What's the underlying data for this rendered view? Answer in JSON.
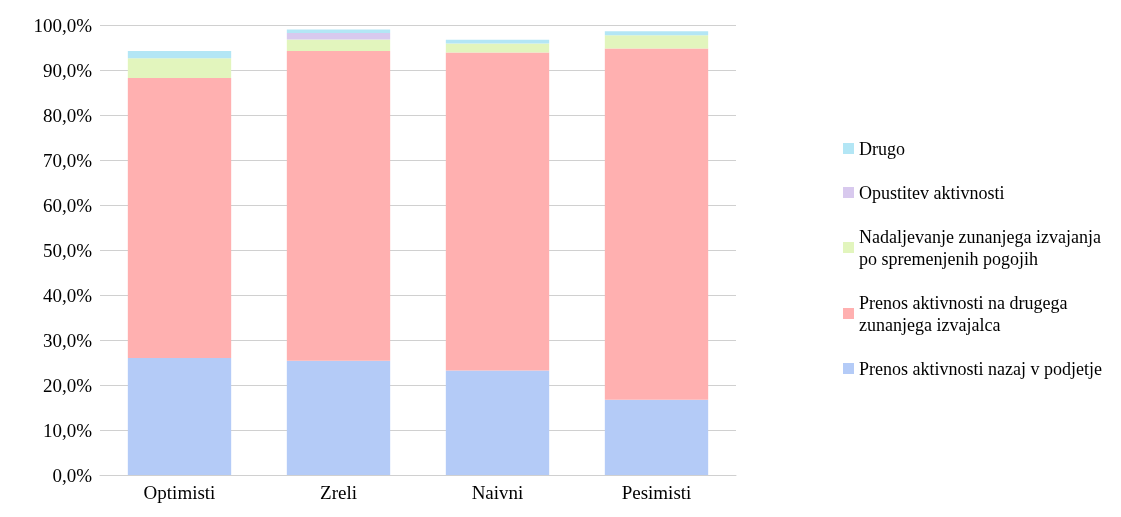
{
  "chart_data": {
    "type": "bar",
    "stacked": true,
    "categories": [
      "Optimisti",
      "Zreli",
      "Naivni",
      "Pesimisti"
    ],
    "series": [
      {
        "name": "Prenos aktivnosti nazaj v podjetje",
        "color": "#b4cbf7",
        "values": [
          26.0,
          25.4,
          23.2,
          16.7
        ]
      },
      {
        "name": "Prenos aktivnosti na drugega zunanjega izvajalca",
        "color": "#ffb0b0",
        "values": [
          62.2,
          68.8,
          70.7,
          78.1
        ]
      },
      {
        "name": "Nadaljevanje zunanjega izvajanja po spremenjenih pogojih",
        "color": "#e2f5bd",
        "values": [
          4.4,
          2.6,
          2.0,
          2.9
        ]
      },
      {
        "name": "Opustitev aktivnosti",
        "color": "#d8c9ee",
        "values": [
          0,
          1.4,
          0,
          0
        ]
      },
      {
        "name": "Drugo",
        "color": "#b3e6f5",
        "values": [
          1.6,
          0.8,
          0.8,
          0.9
        ]
      }
    ],
    "ylim": [
      0,
      100
    ],
    "yticks": [
      {
        "value": 0,
        "label": "0,0%"
      },
      {
        "value": 10,
        "label": "10,0%"
      },
      {
        "value": 20,
        "label": "20,0%"
      },
      {
        "value": 30,
        "label": "30,0%"
      },
      {
        "value": 40,
        "label": "40,0%"
      },
      {
        "value": 50,
        "label": "50,0%"
      },
      {
        "value": 60,
        "label": "60,0%"
      },
      {
        "value": 70,
        "label": "70,0%"
      },
      {
        "value": 80,
        "label": "80,0%"
      },
      {
        "value": 90,
        "label": "90,0%"
      },
      {
        "value": 100,
        "label": "100,0%"
      }
    ],
    "grid": "y",
    "legend": "right"
  }
}
